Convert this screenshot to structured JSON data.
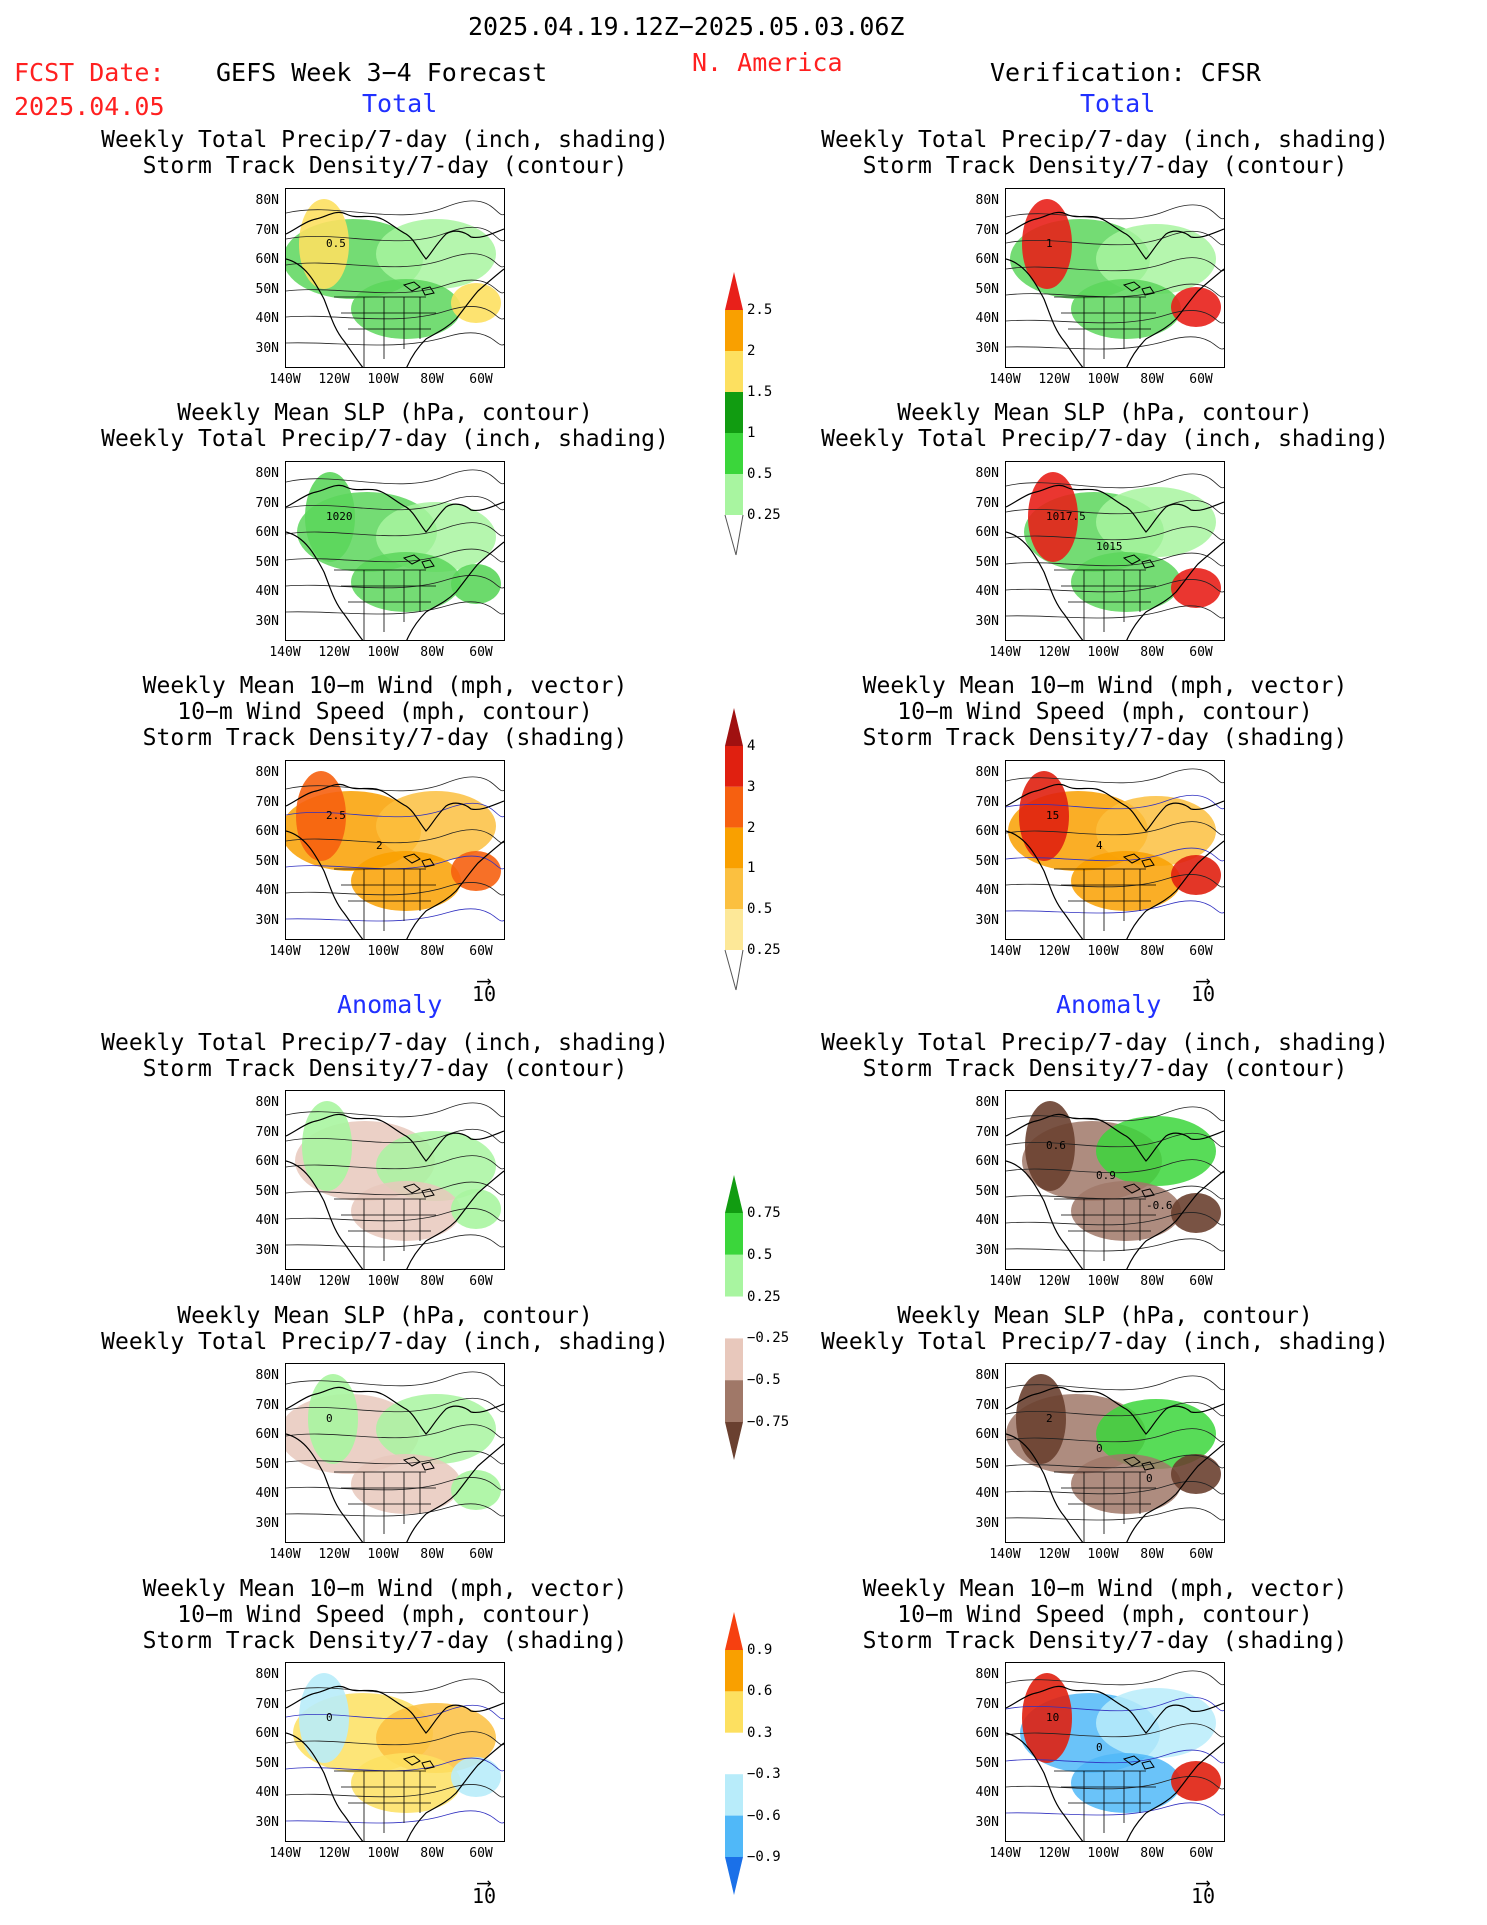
{
  "header": {
    "date_range": "2025.04.19.12Z−2025.05.03.06Z",
    "fcst_label": "FCST Date:",
    "fcst_date": "2025.04.05",
    "model": "GEFS Week 3−4 Forecast",
    "region": "N. America",
    "verification": "Verification: CFSR"
  },
  "sections": {
    "total": "Total",
    "anomaly": "Anomaly"
  },
  "titles": {
    "precip_storm": [
      "Weekly Total Precip/7-day (inch, shading)",
      "Storm Track Density/7-day (contour)"
    ],
    "slp_precip": [
      "Weekly Mean SLP (hPa, contour)",
      "Weekly Total Precip/7-day (inch, shading)"
    ],
    "wind_storm": [
      "Weekly Mean 10−m Wind (mph, vector)",
      "10−m Wind Speed (mph, contour)",
      "Storm Track Density/7-day (shading)"
    ]
  },
  "axes": {
    "lat_labels": [
      "80N",
      "70N",
      "60N",
      "50N",
      "40N",
      "30N"
    ],
    "lon_labels": [
      "140W",
      "120W",
      "100W",
      "80W",
      "60W"
    ]
  },
  "vector_ref": "10",
  "colorbars": {
    "precip_total": {
      "labels": [
        "2.5",
        "2",
        "1.5",
        "1",
        "0.5",
        "0.25"
      ],
      "colors": [
        "#e8201a",
        "#f9a000",
        "#fde060",
        "#119c11",
        "#3bd63b",
        "#a8f5a0"
      ]
    },
    "storm_total": {
      "labels": [
        "4",
        "3",
        "2",
        "1",
        "0.5",
        "0.25"
      ],
      "colors": [
        "#a01010",
        "#e02010",
        "#f66010",
        "#f9a000",
        "#fbc040",
        "#fde898"
      ]
    },
    "precip_anom": {
      "labels": [
        "0.75",
        "0.5",
        "0.25",
        "−0.25",
        "−0.5",
        "−0.75"
      ],
      "colors": [
        "#119c11",
        "#3bd63b",
        "#a8f5a0",
        "#ffffff",
        "#e8c8bc",
        "#a07868",
        "#6a4030"
      ]
    },
    "storm_anom": {
      "labels": [
        "0.9",
        "0.6",
        "0.3",
        "−0.3",
        "−0.6",
        "−0.9"
      ],
      "colors": [
        "#f64010",
        "#f9a000",
        "#fde060",
        "#ffffff",
        "#b8ecfa",
        "#50b8f8",
        "#1a70e8"
      ]
    },
    "pole_color": "#555555"
  },
  "panels": [
    {
      "id": "fcst-total-precip",
      "contour_labels": [
        "0.5"
      ],
      "shade": "#5cd65c",
      "shade2": "#a8f5a0",
      "accent": "#fde060"
    },
    {
      "id": "verif-total-precip",
      "contour_labels": [
        "1"
      ],
      "shade": "#5cd65c",
      "shade2": "#a8f5a0",
      "accent": "#e8201a"
    },
    {
      "id": "fcst-total-slp",
      "contour_labels": [
        "1020"
      ],
      "shade": "#5cd65c",
      "shade2": "#a8f5a0",
      "accent": "#5cd65c"
    },
    {
      "id": "verif-total-slp",
      "contour_labels": [
        "1017.5",
        "1015"
      ],
      "shade": "#5cd65c",
      "shade2": "#a8f5a0",
      "accent": "#e8201a"
    },
    {
      "id": "fcst-total-wind",
      "contour_labels": [
        "2.5",
        "2"
      ],
      "shade": "#f9a000",
      "shade2": "#fbc040",
      "accent": "#f66010"
    },
    {
      "id": "verif-total-wind",
      "contour_labels": [
        "15",
        "4"
      ],
      "shade": "#f9a000",
      "shade2": "#fbc040",
      "accent": "#e02010"
    },
    {
      "id": "fcst-anom-precip",
      "contour_labels": [],
      "shade": "#e8c8bc",
      "shade2": "#a8f5a0",
      "accent": "#a8f5a0"
    },
    {
      "id": "verif-anom-precip",
      "contour_labels": [
        "0.6",
        "0.9",
        "-0.6"
      ],
      "shade": "#a07868",
      "shade2": "#3bd63b",
      "accent": "#6a4030"
    },
    {
      "id": "fcst-anom-slp",
      "contour_labels": [
        "0"
      ],
      "shade": "#e8c8bc",
      "shade2": "#a8f5a0",
      "accent": "#a8f5a0"
    },
    {
      "id": "verif-anom-slp",
      "contour_labels": [
        "2",
        "0",
        "0"
      ],
      "shade": "#a07868",
      "shade2": "#3bd63b",
      "accent": "#6a4030"
    },
    {
      "id": "fcst-anom-wind",
      "contour_labels": [
        "0"
      ],
      "shade": "#fde060",
      "shade2": "#fbc040",
      "accent": "#b8ecfa"
    },
    {
      "id": "verif-anom-wind",
      "contour_labels": [
        "10",
        "0"
      ],
      "shade": "#50b8f8",
      "shade2": "#b8ecfa",
      "accent": "#e02010"
    }
  ]
}
